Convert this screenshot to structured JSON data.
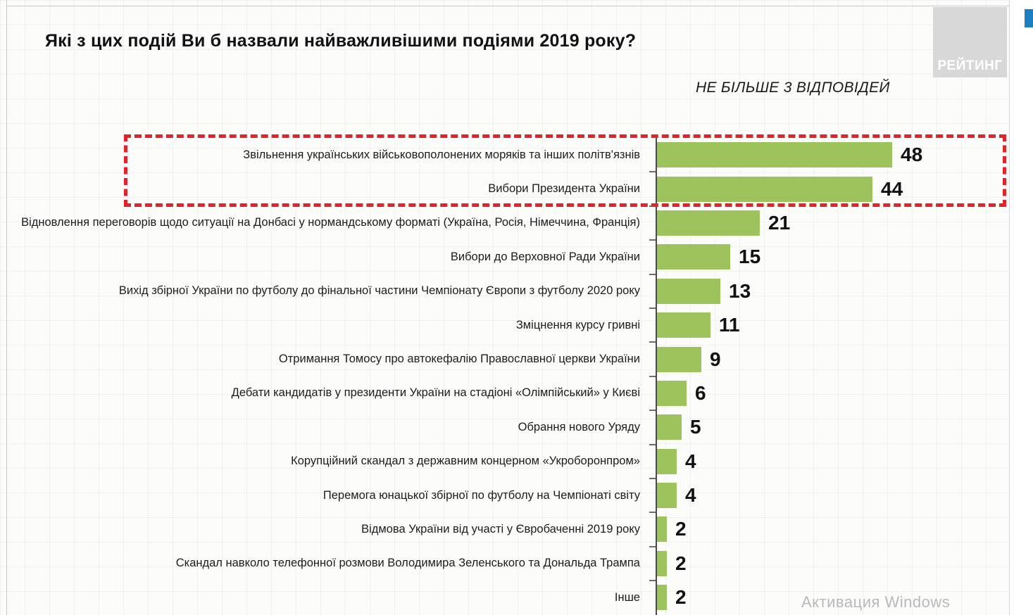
{
  "page": {
    "title": "Які з цих подій Ви б назвали найважливішими подіями 2019 року?",
    "subtitle": "НЕ БІЛЬШЕ 3 ВІДПОВІДЕЙ",
    "logo_text": "РЕЙТИНГ",
    "watermark": "Активация Windows"
  },
  "colors": {
    "bar": "#9dc35c",
    "highlight": "#e2242a",
    "logo_bg": "#d8d8d8",
    "logo_text": "#ffffff",
    "accent_blue": "#1c7fc4",
    "value_text": "#111111"
  },
  "chart_data": {
    "type": "bar",
    "orientation": "horizontal",
    "title": "Які з цих подій Ви б назвали найважливішими подіями 2019 року?",
    "note": "НЕ БІЛЬШЕ 3 ВІДПОВІДЕЙ",
    "unit": "%",
    "data_labels": true,
    "categories": [
      "Звільнення українських військовополонених моряків та інших політв'язнів",
      "Вибори Президента України",
      "Відновлення переговорів щодо ситуації на Донбасі у нормандському форматі (Україна, Росія, Німеччина, Франція)",
      "Вибори до Верховної Ради України",
      "Вихід збірної України по футболу до фінальної частини Чемпіонату Європи з футболу 2020 року",
      "Зміцнення курсу гривні",
      "Отримання Томосу про автокефалію Православної церкви України",
      "Дебати кандидатів у президенти України на стадіоні «Олімпійський» у Києві",
      "Обрання нового Уряду",
      "Корупційний скандал з державним концерном «Укроборонпром»",
      "Перемога юнацької збірної по футболу на Чемпіонаті світу",
      "Відмова України від участі у Євробаченні 2019 року",
      "Скандал навколо телефонної розмови Володимира Зеленського та Дональда Трампа",
      "Інше"
    ],
    "values": [
      48,
      44,
      21,
      15,
      13,
      11,
      9,
      6,
      5,
      4,
      4,
      2,
      2,
      2
    ],
    "highlighted_indices": [
      0,
      1
    ],
    "bar_color": "#9dc35c",
    "highlight_style": "red-dashed-outline"
  }
}
